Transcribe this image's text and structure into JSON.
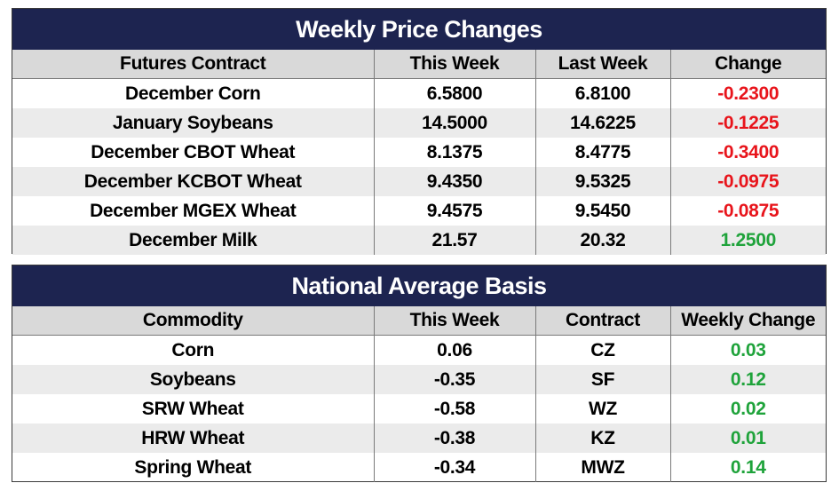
{
  "price_changes": {
    "title": "Weekly Price Changes",
    "headers": [
      "Futures Contract",
      "This Week",
      "Last Week",
      "Change"
    ],
    "rows": [
      {
        "contract": "December Corn",
        "this_week": "6.5800",
        "last_week": "6.8100",
        "change": "-0.2300"
      },
      {
        "contract": "January Soybeans",
        "this_week": "14.5000",
        "last_week": "14.6225",
        "change": "-0.1225"
      },
      {
        "contract": "December CBOT Wheat",
        "this_week": "8.1375",
        "last_week": "8.4775",
        "change": "-0.3400"
      },
      {
        "contract": "December KCBOT Wheat",
        "this_week": "9.4350",
        "last_week": "9.5325",
        "change": "-0.0975"
      },
      {
        "contract": "December MGEX Wheat",
        "this_week": "9.4575",
        "last_week": "9.5450",
        "change": "-0.0875"
      },
      {
        "contract": "December Milk",
        "this_week": "21.57",
        "last_week": "20.32",
        "change": "1.2500"
      }
    ]
  },
  "basis": {
    "title": "National Average Basis",
    "headers": [
      "Commodity",
      "This Week",
      "Contract",
      "Weekly Change"
    ],
    "rows": [
      {
        "commodity": "Corn",
        "this_week": "0.06",
        "contract": "CZ",
        "weekly_change": "0.03"
      },
      {
        "commodity": "Soybeans",
        "this_week": "-0.35",
        "contract": "SF",
        "weekly_change": "0.12"
      },
      {
        "commodity": "SRW Wheat",
        "this_week": "-0.58",
        "contract": "WZ",
        "weekly_change": "0.02"
      },
      {
        "commodity": "HRW Wheat",
        "this_week": "-0.38",
        "contract": "KZ",
        "weekly_change": "0.01"
      },
      {
        "commodity": "Spring Wheat",
        "this_week": "-0.34",
        "contract": "MWZ",
        "weekly_change": "0.14"
      }
    ]
  },
  "colors": {
    "header_bg": "#1d2450",
    "negative": "#e8141b",
    "positive": "#1fa33b"
  }
}
